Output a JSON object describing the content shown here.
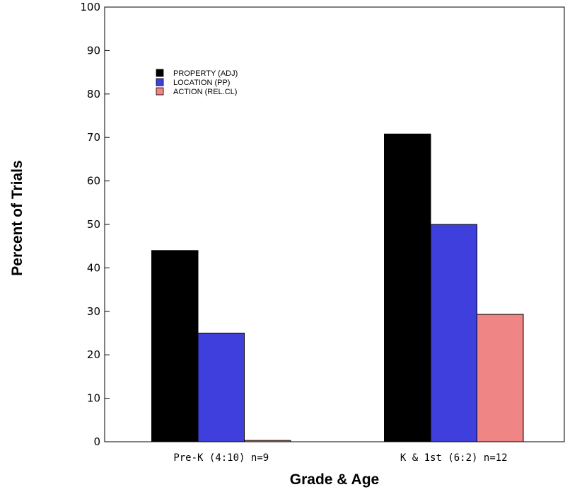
{
  "chart_data": {
    "type": "bar",
    "title": "",
    "xlabel": "Grade & Age",
    "ylabel": "Percent of Trials",
    "ylim": [
      0,
      100
    ],
    "yticks": [
      0,
      10,
      20,
      30,
      40,
      50,
      60,
      70,
      80,
      90,
      100
    ],
    "grid": false,
    "legend_position": "top-left",
    "categories": [
      "Pre-K (4:10) n=9",
      "K & 1st (6:2) n=12"
    ],
    "series": [
      {
        "name": "PROPERTY (ADJ)",
        "color": "#000000",
        "values": [
          44,
          70.8
        ]
      },
      {
        "name": "LOCATION (PP)",
        "color": "#3f3fdd",
        "values": [
          25,
          50
        ]
      },
      {
        "name": "ACTION (REL.CL)",
        "color": "#ef8585",
        "values": [
          0.3,
          29.3
        ]
      }
    ]
  }
}
